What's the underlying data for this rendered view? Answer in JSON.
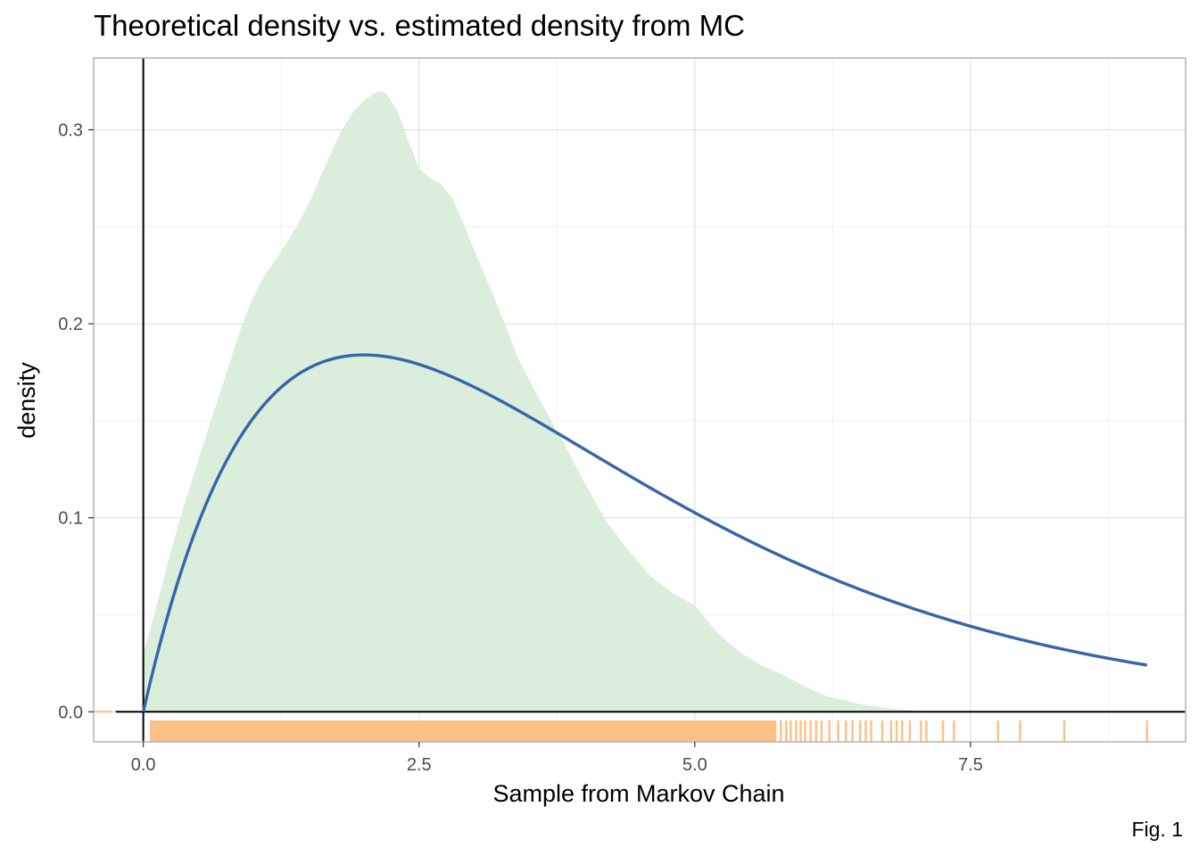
{
  "chart_data": {
    "type": "area",
    "title": "Theoretical density vs. estimated density from MC",
    "xlabel": "Sample from Markov Chain",
    "ylabel": "density",
    "caption": "Fig. 1",
    "xlim": [
      -0.45,
      9.45
    ],
    "ylim": [
      -0.0155,
      0.337
    ],
    "x_ticks": [
      0.0,
      2.5,
      5.0,
      7.5
    ],
    "x_tick_labels": [
      "0.0",
      "2.5",
      "5.0",
      "7.5"
    ],
    "y_ticks": [
      0.0,
      0.1,
      0.2,
      0.3
    ],
    "y_tick_labels": [
      "0.0",
      "0.1",
      "0.2",
      "0.3"
    ],
    "grid": true,
    "reference_lines": {
      "hline_y": 0,
      "vline_x": 0
    },
    "series": [
      {
        "name": "estimated density from MC",
        "kind": "area",
        "color": "#d8edd9",
        "x": [
          0.0,
          0.1,
          0.2,
          0.3,
          0.4,
          0.5,
          0.6,
          0.7,
          0.8,
          0.9,
          1.0,
          1.1,
          1.2,
          1.3,
          1.4,
          1.5,
          1.6,
          1.7,
          1.8,
          1.9,
          2.0,
          2.1,
          2.15,
          2.2,
          2.3,
          2.4,
          2.5,
          2.6,
          2.7,
          2.8,
          2.9,
          3.0,
          3.2,
          3.4,
          3.6,
          3.8,
          4.0,
          4.2,
          4.4,
          4.6,
          4.8,
          5.0,
          5.2,
          5.4,
          5.6,
          5.8,
          6.0,
          6.2,
          6.5,
          6.8,
          7.1
        ],
        "values": [
          0.03,
          0.05,
          0.072,
          0.093,
          0.112,
          0.13,
          0.148,
          0.165,
          0.183,
          0.2,
          0.214,
          0.225,
          0.233,
          0.242,
          0.251,
          0.262,
          0.275,
          0.288,
          0.3,
          0.309,
          0.315,
          0.319,
          0.32,
          0.319,
          0.31,
          0.295,
          0.28,
          0.275,
          0.272,
          0.265,
          0.252,
          0.238,
          0.211,
          0.182,
          0.16,
          0.14,
          0.118,
          0.098,
          0.083,
          0.07,
          0.061,
          0.055,
          0.041,
          0.031,
          0.024,
          0.019,
          0.013,
          0.008,
          0.004,
          0.0015,
          0.0
        ]
      },
      {
        "name": "theoretical density",
        "kind": "line",
        "color": "#3565aa",
        "formula": "gamma(shape=2, rate=0.5): 0.25 * x * exp(-x/2)",
        "x_range": [
          0,
          9.1
        ]
      }
    ],
    "rug": {
      "color": "#fdbf85",
      "x": [
        0.07,
        0.2,
        0.45,
        0.8,
        1.2,
        1.6,
        2.0,
        2.4,
        2.8,
        3.2,
        3.6,
        4.0,
        4.4,
        4.8,
        5.2,
        5.5,
        5.7,
        5.73,
        5.78,
        5.83,
        5.87,
        5.92,
        5.96,
        6.0,
        6.05,
        6.1,
        6.15,
        6.22,
        6.3,
        6.37,
        6.43,
        6.5,
        6.55,
        6.6,
        6.7,
        6.78,
        6.83,
        6.88,
        6.95,
        7.05,
        7.1,
        7.25,
        7.35,
        7.75,
        7.95,
        8.35,
        9.1
      ]
    }
  }
}
